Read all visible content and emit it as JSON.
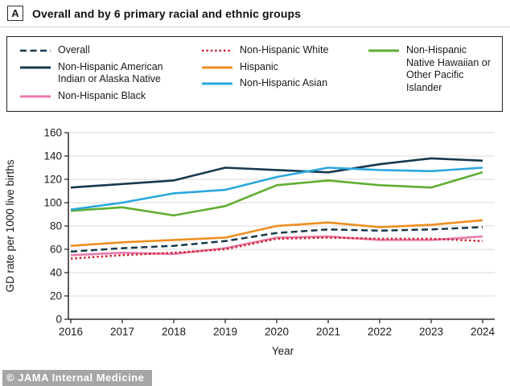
{
  "header": {
    "panel_letter": "A",
    "title": "Overall and by 6 primary racial and ethnic groups"
  },
  "legend": {
    "items": [
      {
        "label": "Overall",
        "color": "#17394c",
        "style": "dashed"
      },
      {
        "label": "Non-Hispanic American Indian or Alaska Native",
        "color": "#17394c",
        "style": "solid"
      },
      {
        "label": "Non-Hispanic Black",
        "color": "#e97bad",
        "style": "solid"
      },
      {
        "label": "Non-Hispanic White",
        "color": "#cb2027",
        "style": "dotted"
      },
      {
        "label": "Hispanic",
        "color": "#ef8d1f",
        "style": "solid"
      },
      {
        "label": "Non-Hispanic Asian",
        "color": "#2aa7de",
        "style": "solid"
      },
      {
        "label": "Non-Hispanic Native Hawaiian or Other Pacific Islander",
        "color": "#5fae32",
        "style": "solid"
      }
    ]
  },
  "chart_data": {
    "type": "line",
    "x": [
      2016,
      2017,
      2018,
      2019,
      2020,
      2021,
      2022,
      2023,
      2024
    ],
    "series": [
      {
        "name": "Non-Hispanic American Indian or Alaska Native",
        "color": "#17394c",
        "style": "solid",
        "values": [
          113,
          116,
          119,
          130,
          128,
          126,
          133,
          138,
          136
        ]
      },
      {
        "name": "Non-Hispanic Native Hawaiian or Other Pacific Islander",
        "color": "#5fae32",
        "style": "solid",
        "values": [
          93,
          96,
          89,
          97,
          115,
          119,
          115,
          113,
          126
        ]
      },
      {
        "name": "Non-Hispanic Asian",
        "color": "#2aa7de",
        "style": "solid",
        "values": [
          94,
          100,
          108,
          111,
          122,
          130,
          128,
          127,
          130
        ]
      },
      {
        "name": "Non-Hispanic Black",
        "color": "#e97bad",
        "style": "solid",
        "values": [
          55,
          57,
          56,
          61,
          70,
          71,
          68,
          68,
          71
        ]
      },
      {
        "name": "Non-Hispanic White",
        "color": "#cb2027",
        "style": "dotted",
        "values": [
          52,
          55,
          57,
          60,
          69,
          70,
          69,
          69,
          67
        ]
      },
      {
        "name": "Hispanic",
        "color": "#ef8d1f",
        "style": "solid",
        "values": [
          63,
          66,
          68,
          70,
          80,
          83,
          79,
          81,
          85
        ]
      },
      {
        "name": "Overall",
        "color": "#17394c",
        "style": "dashed",
        "values": [
          58,
          61,
          63,
          67,
          74,
          77,
          76,
          77,
          79
        ]
      }
    ],
    "title": "Overall and by 6 primary racial and ethnic groups",
    "xlabel": "Year",
    "ylabel": "GD rate per 1000 live births",
    "ylim": [
      0,
      160
    ],
    "ytick_step": 20,
    "yticks": [
      0,
      20,
      40,
      60,
      80,
      100,
      120,
      140,
      160
    ],
    "grid": true,
    "legend_position": "top"
  },
  "footer": {
    "watermark": "© JAMA Internal Medicine"
  }
}
